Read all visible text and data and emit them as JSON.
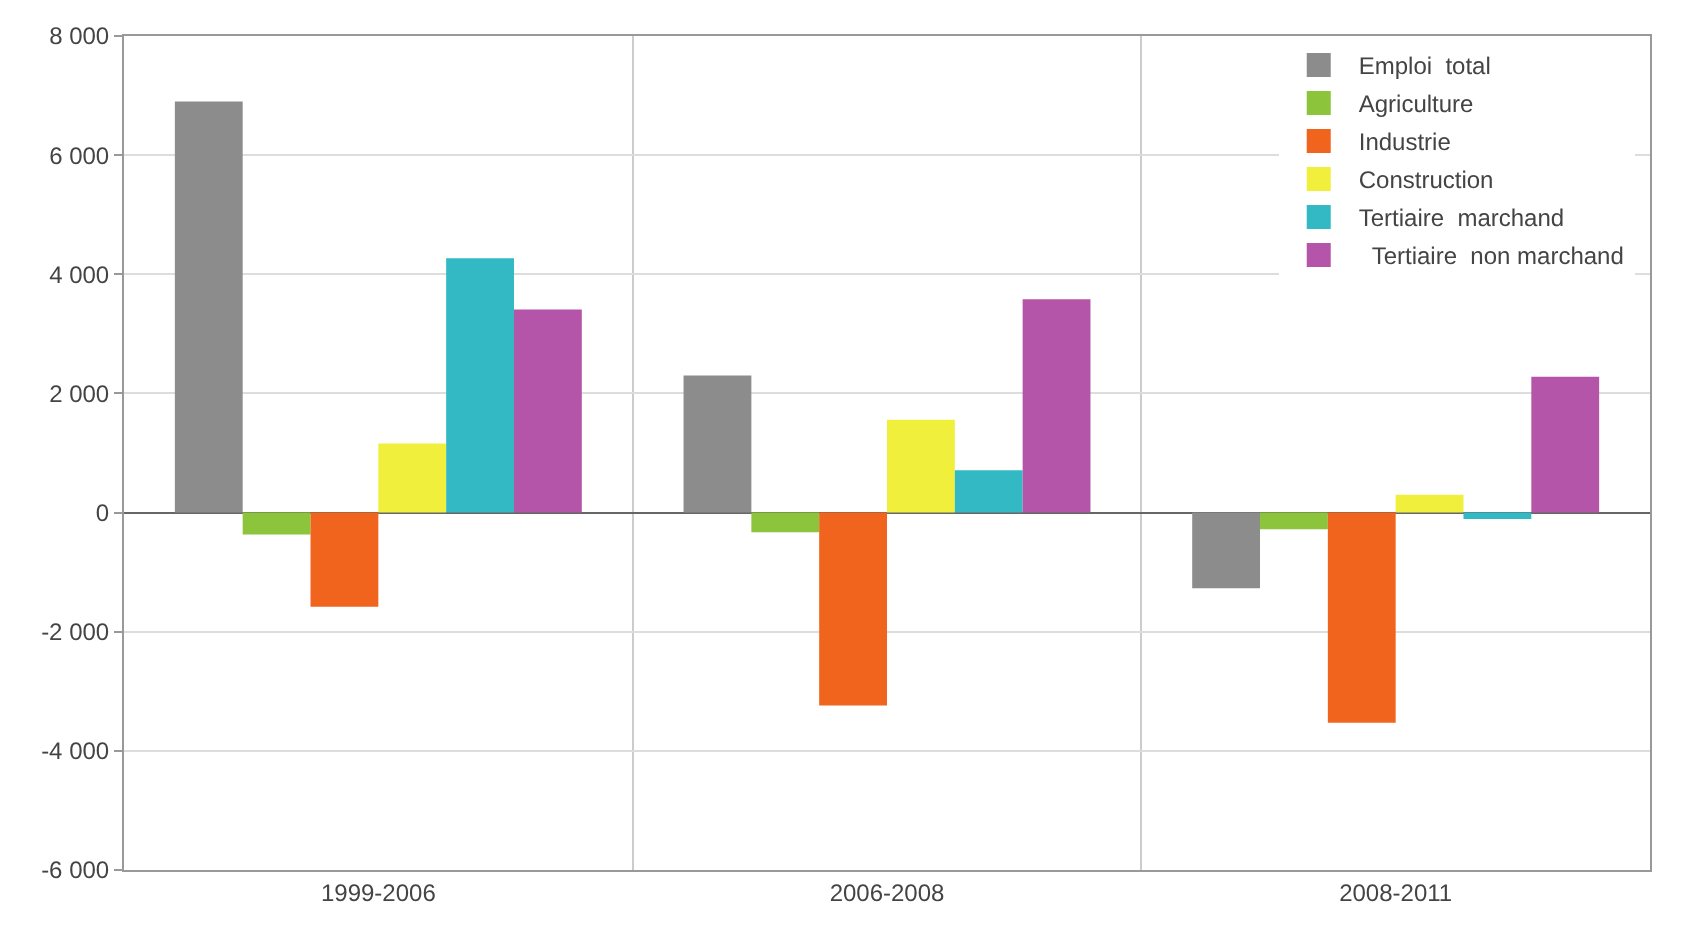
{
  "chart_data": {
    "type": "bar",
    "categories": [
      "1999-2006",
      "2006-2008",
      "2008-2011"
    ],
    "series": [
      {
        "name": "Emploi  total",
        "color": "#8c8c8c",
        "values": [
          6900,
          2300,
          -1270
        ]
      },
      {
        "name": "Agriculture",
        "color": "#8cc43c",
        "values": [
          -370,
          -330,
          -280
        ]
      },
      {
        "name": "Industrie",
        "color": "#f0641e",
        "values": [
          -1580,
          -3240,
          -3530
        ]
      },
      {
        "name": "Construction",
        "color": "#f0f03c",
        "values": [
          1160,
          1560,
          300
        ]
      },
      {
        "name": "Tertiaire  marchand",
        "color": "#32b9c3",
        "values": [
          4270,
          710,
          -110
        ]
      },
      {
        "name": "  Tertiaire  non marchand",
        "color": "#b455aa",
        "values": [
          3410,
          3580,
          2280
        ]
      }
    ],
    "ylim": [
      -6000,
      8000
    ],
    "yticks": [
      {
        "value": -6000,
        "label": "-6 000"
      },
      {
        "value": -4000,
        "label": "-4 000"
      },
      {
        "value": -2000,
        "label": "-2 000"
      },
      0,
      {
        "value": 2000,
        "label": "2 000"
      },
      {
        "value": 4000,
        "label": "4 000"
      },
      {
        "value": 6000,
        "label": "6 000"
      },
      {
        "value": 8000,
        "label": "8 000"
      }
    ],
    "grid": true,
    "legend": "top right"
  }
}
